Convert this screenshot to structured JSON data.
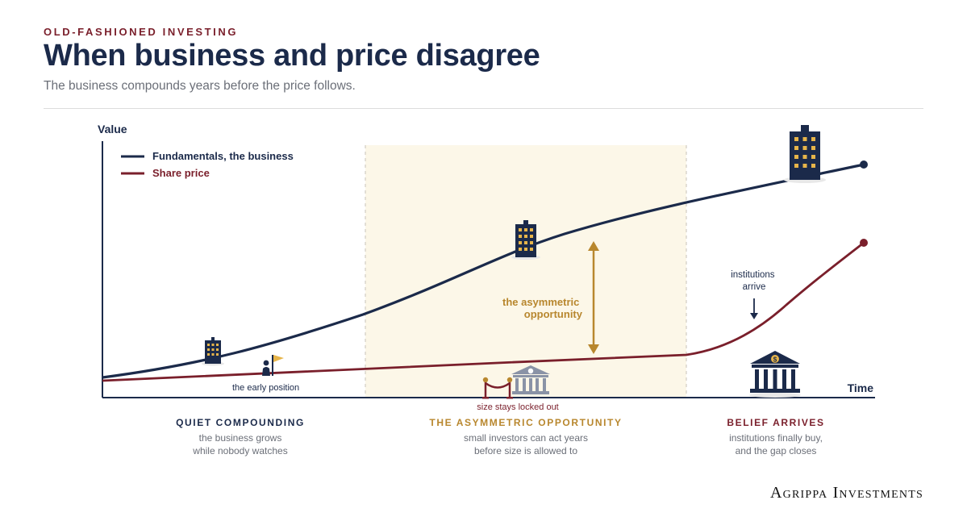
{
  "header": {
    "eyebrow": "OLD-FASHIONED INVESTING",
    "title": "When business and price disagree",
    "subtitle": "The business compounds years before the price follows."
  },
  "chart_data": {
    "type": "line",
    "xlabel": "Time",
    "ylabel": "Value",
    "legend_position": "top-left",
    "series": [
      {
        "name": "Fundamentals, the business",
        "color": "#1b2a4a",
        "shape": "accelerating then flattening growth, ending high"
      },
      {
        "name": "Share price",
        "color": "#7a1f2b",
        "shape": "nearly flat, then rising sharply at the end"
      }
    ],
    "annotations": {
      "early_position": "the early position",
      "gap": "the asymmetric opportunity",
      "locked_out": "size stays locked out",
      "institutions": "institutions arrive"
    }
  },
  "phases": [
    {
      "title": "QUIET COMPOUNDING",
      "line1": "the business grows",
      "line2": "while nobody watches",
      "color": "#1b2a4a"
    },
    {
      "title": "THE ASYMMETRIC OPPORTUNITY",
      "line1": "small investors can act years",
      "line2": "before size is allowed to",
      "color": "#b8872e"
    },
    {
      "title": "BELIEF ARRIVES",
      "line1": "institutions finally buy,",
      "line2": "and the gap closes",
      "color": "#7a1f2b"
    }
  ],
  "colors": {
    "navy": "#1b2a4a",
    "maroon": "#7a1f2b",
    "gold": "#b8872e",
    "highlight_bg": "#fcf7e8"
  },
  "icons": [
    "building-icon",
    "climber-flag-icon",
    "bank-dollar-icon",
    "velvet-rope-icon",
    "down-arrow-icon"
  ],
  "brand": "Agrippa Investments"
}
